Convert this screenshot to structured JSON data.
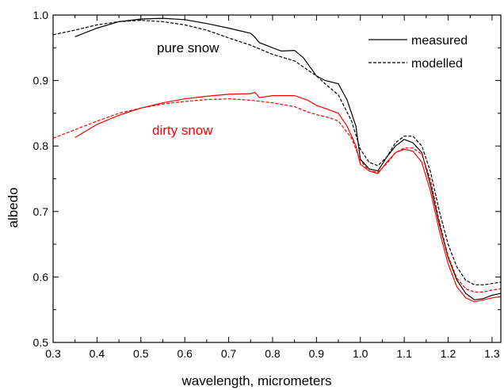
{
  "chart_data": {
    "type": "line",
    "xlabel": "wavelength, micrometers",
    "ylabel": "albedo",
    "xlim": [
      0.3,
      1.32
    ],
    "ylim": [
      0.5,
      1.0
    ],
    "grid": false,
    "legend_position": "top-right",
    "x_ticks": [
      "0.3",
      "0.4",
      "0.5",
      "0.6",
      "0.7",
      "0.8",
      "0.9",
      "1.0",
      "1.1",
      "1.2",
      "1.3"
    ],
    "y_ticks": [
      "0.5",
      "0.6",
      "0.7",
      "0.8",
      "0.9",
      "1.0"
    ],
    "legend": [
      {
        "label": "measured",
        "style": "solid"
      },
      {
        "label": "modelled",
        "style": "dashed"
      }
    ],
    "annotations": [
      {
        "text": "pure snow",
        "color": "#000000"
      },
      {
        "text": "dirty snow",
        "color": "#ff0000"
      }
    ],
    "series": [
      {
        "group": "pure snow",
        "kind": "measured",
        "color": "#000000",
        "style": "solid",
        "x": [
          0.35,
          0.4,
          0.45,
          0.5,
          0.55,
          0.6,
          0.65,
          0.7,
          0.75,
          0.76,
          0.77,
          0.8,
          0.82,
          0.85,
          0.87,
          0.9,
          0.92,
          0.95,
          0.97,
          0.99,
          1.0,
          1.02,
          1.04,
          1.06,
          1.08,
          1.1,
          1.12,
          1.14,
          1.16,
          1.18,
          1.2,
          1.22,
          1.24,
          1.26,
          1.28,
          1.3,
          1.32
        ],
        "y": [
          0.967,
          0.98,
          0.99,
          0.994,
          0.995,
          0.993,
          0.987,
          0.98,
          0.972,
          0.966,
          0.958,
          0.95,
          0.945,
          0.946,
          0.935,
          0.907,
          0.9,
          0.895,
          0.87,
          0.83,
          0.78,
          0.765,
          0.762,
          0.783,
          0.8,
          0.81,
          0.805,
          0.79,
          0.74,
          0.68,
          0.63,
          0.595,
          0.575,
          0.565,
          0.567,
          0.572,
          0.575
        ]
      },
      {
        "group": "pure snow",
        "kind": "modelled",
        "color": "#000000",
        "style": "dashed",
        "x": [
          0.3,
          0.35,
          0.4,
          0.45,
          0.5,
          0.55,
          0.6,
          0.65,
          0.7,
          0.75,
          0.8,
          0.85,
          0.9,
          0.92,
          0.95,
          0.98,
          1.0,
          1.02,
          1.04,
          1.06,
          1.08,
          1.1,
          1.12,
          1.14,
          1.16,
          1.18,
          1.2,
          1.22,
          1.24,
          1.26,
          1.28,
          1.3,
          1.32
        ],
        "y": [
          0.97,
          0.977,
          0.985,
          0.99,
          0.992,
          0.99,
          0.985,
          0.977,
          0.965,
          0.954,
          0.94,
          0.93,
          0.907,
          0.895,
          0.878,
          0.838,
          0.795,
          0.775,
          0.77,
          0.783,
          0.805,
          0.815,
          0.815,
          0.8,
          0.76,
          0.7,
          0.65,
          0.615,
          0.595,
          0.588,
          0.588,
          0.59,
          0.592
        ]
      },
      {
        "group": "dirty snow",
        "kind": "measured",
        "color": "#ff0000",
        "style": "solid",
        "x": [
          0.35,
          0.4,
          0.45,
          0.5,
          0.55,
          0.6,
          0.65,
          0.7,
          0.75,
          0.76,
          0.77,
          0.8,
          0.85,
          0.88,
          0.9,
          0.93,
          0.95,
          0.97,
          0.99,
          1.0,
          1.02,
          1.04,
          1.06,
          1.08,
          1.1,
          1.12,
          1.14,
          1.16,
          1.18,
          1.2,
          1.22,
          1.24,
          1.26,
          1.28,
          1.3,
          1.32
        ],
        "y": [
          0.813,
          0.833,
          0.847,
          0.858,
          0.866,
          0.872,
          0.876,
          0.879,
          0.88,
          0.882,
          0.874,
          0.877,
          0.877,
          0.87,
          0.862,
          0.855,
          0.85,
          0.83,
          0.8,
          0.772,
          0.762,
          0.758,
          0.775,
          0.79,
          0.795,
          0.792,
          0.775,
          0.73,
          0.67,
          0.62,
          0.585,
          0.568,
          0.562,
          0.565,
          0.568,
          0.57
        ]
      },
      {
        "group": "dirty snow",
        "kind": "modelled",
        "color": "#ff0000",
        "style": "dashed",
        "x": [
          0.3,
          0.35,
          0.4,
          0.45,
          0.5,
          0.55,
          0.6,
          0.65,
          0.7,
          0.75,
          0.8,
          0.85,
          0.88,
          0.9,
          0.93,
          0.95,
          0.98,
          1.0,
          1.02,
          1.04,
          1.06,
          1.08,
          1.1,
          1.12,
          1.14,
          1.16,
          1.18,
          1.2,
          1.22,
          1.24,
          1.26,
          1.28,
          1.3,
          1.32
        ],
        "y": [
          0.812,
          0.825,
          0.838,
          0.85,
          0.858,
          0.864,
          0.868,
          0.871,
          0.872,
          0.87,
          0.866,
          0.86,
          0.852,
          0.848,
          0.843,
          0.838,
          0.812,
          0.778,
          0.762,
          0.76,
          0.773,
          0.79,
          0.797,
          0.797,
          0.787,
          0.748,
          0.685,
          0.632,
          0.598,
          0.582,
          0.577,
          0.577,
          0.58,
          0.582
        ]
      }
    ]
  }
}
